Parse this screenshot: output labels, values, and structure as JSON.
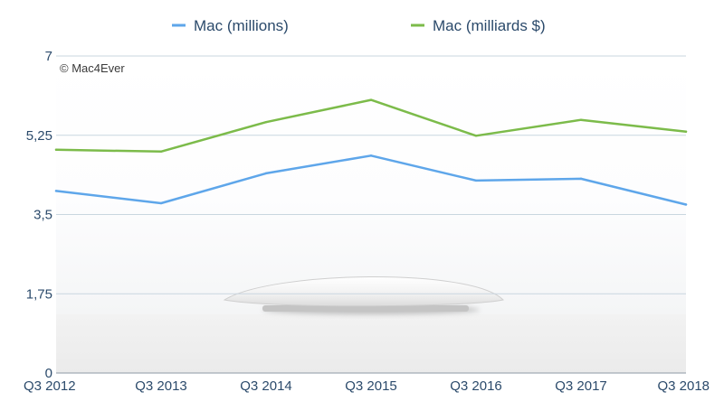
{
  "watermark": "© Mac4Ever",
  "colors": {
    "units_series": "#5ea6ea",
    "revenue_series": "#7cbb4a",
    "axis_text": "#2b4a6b",
    "gridline": "#c9d6df"
  },
  "chart_data": {
    "type": "line",
    "title": "",
    "xlabel": "",
    "ylabel": "",
    "categories": [
      "Q3 2012",
      "Q3 2013",
      "Q3 2014",
      "Q3 2015",
      "Q3 2016",
      "Q3 2017",
      "Q3 2018"
    ],
    "ylim": [
      0,
      7
    ],
    "yticks": [
      0,
      1.75,
      3.5,
      5.25,
      7
    ],
    "ytick_labels": [
      "0",
      "1,75",
      "3,5",
      "5,25",
      "7"
    ],
    "grid": true,
    "legend_position": "top",
    "series": [
      {
        "name": "Mac (millions)",
        "color": "#5ea6ea",
        "values": [
          4.02,
          3.75,
          4.41,
          4.8,
          4.25,
          4.29,
          3.72
        ]
      },
      {
        "name": "Mac (milliards $)",
        "color": "#7cbb4a",
        "values": [
          4.93,
          4.89,
          5.54,
          6.03,
          5.24,
          5.59,
          5.33
        ]
      }
    ]
  }
}
